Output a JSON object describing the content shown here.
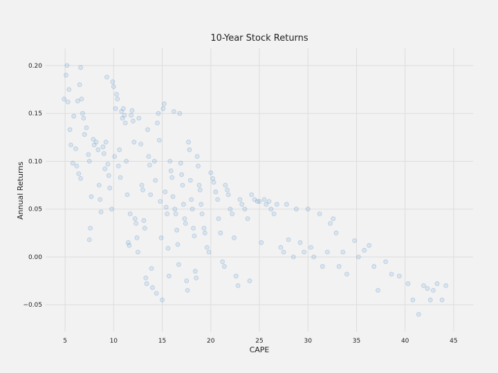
{
  "chart_data": {
    "type": "scatter",
    "title": "10-Year Stock Returns",
    "xlabel": "CAPE",
    "ylabel": "Annual Returns",
    "xlim": [
      3,
      47
    ],
    "ylim": [
      -0.078,
      0.218
    ],
    "xticks": [
      5,
      10,
      15,
      20,
      25,
      30,
      35,
      40,
      45
    ],
    "xtick_labels": [
      "5",
      "10",
      "15",
      "20",
      "25",
      "30",
      "35",
      "40",
      "45"
    ],
    "yticks": [
      -0.05,
      0.0,
      0.05,
      0.1,
      0.15,
      0.2
    ],
    "ytick_labels": [
      "−0.05",
      "0.00",
      "0.05",
      "0.10",
      "0.15",
      "0.20"
    ],
    "grid": true,
    "legend": "none",
    "marker_color": "#5b9bd5",
    "background": "#f2f2f2",
    "points": [
      [
        4.9,
        0.165
      ],
      [
        5.1,
        0.19
      ],
      [
        5.2,
        0.2
      ],
      [
        5.3,
        0.162
      ],
      [
        5.5,
        0.133
      ],
      [
        5.6,
        0.117
      ],
      [
        5.8,
        0.098
      ],
      [
        5.4,
        0.175
      ],
      [
        5.9,
        0.147
      ],
      [
        6.1,
        0.113
      ],
      [
        6.2,
        0.095
      ],
      [
        6.4,
        0.087
      ],
      [
        6.5,
        0.18
      ],
      [
        6.6,
        0.198
      ],
      [
        6.7,
        0.165
      ],
      [
        6.8,
        0.15
      ],
      [
        6.9,
        0.145
      ],
      [
        7.0,
        0.128
      ],
      [
        6.3,
        0.163
      ],
      [
        6.6,
        0.082
      ],
      [
        7.2,
        0.135
      ],
      [
        7.4,
        0.107
      ],
      [
        7.5,
        0.1
      ],
      [
        7.6,
        0.03
      ],
      [
        7.5,
        0.018
      ],
      [
        7.7,
        0.063
      ],
      [
        7.9,
        0.123
      ],
      [
        8.0,
        0.117
      ],
      [
        8.2,
        0.12
      ],
      [
        8.4,
        0.112
      ],
      [
        8.5,
        0.075
      ],
      [
        8.6,
        0.06
      ],
      [
        8.7,
        0.047
      ],
      [
        8.9,
        0.115
      ],
      [
        9.0,
        0.108
      ],
      [
        9.1,
        0.092
      ],
      [
        9.2,
        0.12
      ],
      [
        9.3,
        0.188
      ],
      [
        9.4,
        0.097
      ],
      [
        9.5,
        0.085
      ],
      [
        9.6,
        0.072
      ],
      [
        9.8,
        0.05
      ],
      [
        9.9,
        0.183
      ],
      [
        10.0,
        0.178
      ],
      [
        10.1,
        0.105
      ],
      [
        10.2,
        0.155
      ],
      [
        10.3,
        0.17
      ],
      [
        10.4,
        0.165
      ],
      [
        10.5,
        0.095
      ],
      [
        10.6,
        0.112
      ],
      [
        10.7,
        0.083
      ],
      [
        10.8,
        0.152
      ],
      [
        10.9,
        0.145
      ],
      [
        11.0,
        0.155
      ],
      [
        11.1,
        0.148
      ],
      [
        11.2,
        0.14
      ],
      [
        11.3,
        0.1
      ],
      [
        11.4,
        0.065
      ],
      [
        11.5,
        0.015
      ],
      [
        11.6,
        0.012
      ],
      [
        11.7,
        0.045
      ],
      [
        11.8,
        0.148
      ],
      [
        11.9,
        0.153
      ],
      [
        12.0,
        0.142
      ],
      [
        12.1,
        0.12
      ],
      [
        12.2,
        0.04
      ],
      [
        12.3,
        0.035
      ],
      [
        12.4,
        0.02
      ],
      [
        12.5,
        0.005
      ],
      [
        12.6,
        0.145
      ],
      [
        12.8,
        0.118
      ],
      [
        12.9,
        0.075
      ],
      [
        13.0,
        0.07
      ],
      [
        13.1,
        0.038
      ],
      [
        13.2,
        0.03
      ],
      [
        13.3,
        -0.022
      ],
      [
        13.4,
        -0.028
      ],
      [
        13.5,
        0.133
      ],
      [
        13.6,
        0.105
      ],
      [
        13.7,
        0.096
      ],
      [
        13.8,
        0.065
      ],
      [
        13.9,
        -0.012
      ],
      [
        14.0,
        -0.032
      ],
      [
        14.2,
        0.1
      ],
      [
        14.3,
        0.08
      ],
      [
        14.4,
        -0.038
      ],
      [
        14.5,
        0.14
      ],
      [
        14.6,
        0.15
      ],
      [
        14.7,
        0.122
      ],
      [
        14.8,
        0.058
      ],
      [
        14.9,
        0.02
      ],
      [
        15.0,
        -0.045
      ],
      [
        15.1,
        0.155
      ],
      [
        15.2,
        0.16
      ],
      [
        15.3,
        0.068
      ],
      [
        15.4,
        0.052
      ],
      [
        15.5,
        0.045
      ],
      [
        15.6,
        0.009
      ],
      [
        15.7,
        -0.02
      ],
      [
        15.8,
        0.1
      ],
      [
        15.9,
        0.09
      ],
      [
        16.0,
        0.083
      ],
      [
        16.1,
        0.063
      ],
      [
        16.2,
        0.152
      ],
      [
        16.3,
        0.05
      ],
      [
        16.4,
        0.045
      ],
      [
        16.5,
        0.028
      ],
      [
        16.6,
        0.013
      ],
      [
        16.7,
        -0.008
      ],
      [
        16.8,
        0.15
      ],
      [
        16.9,
        0.098
      ],
      [
        17.0,
        0.086
      ],
      [
        17.1,
        0.075
      ],
      [
        17.2,
        0.055
      ],
      [
        17.3,
        0.04
      ],
      [
        17.4,
        0.035
      ],
      [
        17.5,
        -0.025
      ],
      [
        17.6,
        -0.035
      ],
      [
        17.7,
        0.12
      ],
      [
        17.8,
        0.112
      ],
      [
        17.9,
        0.08
      ],
      [
        18.0,
        0.06
      ],
      [
        18.1,
        0.05
      ],
      [
        18.2,
        0.03
      ],
      [
        18.3,
        0.022
      ],
      [
        18.4,
        -0.015
      ],
      [
        18.5,
        -0.022
      ],
      [
        18.6,
        0.105
      ],
      [
        18.7,
        0.095
      ],
      [
        18.8,
        0.075
      ],
      [
        18.9,
        0.07
      ],
      [
        19.0,
        0.055
      ],
      [
        19.1,
        0.045
      ],
      [
        19.3,
        0.03
      ],
      [
        19.4,
        0.025
      ],
      [
        19.6,
        0.01
      ],
      [
        19.8,
        0.005
      ],
      [
        20.0,
        0.088
      ],
      [
        20.2,
        0.082
      ],
      [
        20.3,
        0.078
      ],
      [
        20.5,
        0.068
      ],
      [
        20.7,
        0.06
      ],
      [
        20.8,
        0.04
      ],
      [
        21.0,
        0.025
      ],
      [
        21.2,
        -0.005
      ],
      [
        21.4,
        -0.01
      ],
      [
        21.5,
        0.075
      ],
      [
        21.7,
        0.07
      ],
      [
        21.8,
        0.065
      ],
      [
        22.0,
        0.05
      ],
      [
        22.2,
        0.045
      ],
      [
        22.4,
        0.02
      ],
      [
        22.6,
        -0.02
      ],
      [
        22.8,
        -0.03
      ],
      [
        23.0,
        0.06
      ],
      [
        23.2,
        0.055
      ],
      [
        23.5,
        0.05
      ],
      [
        23.8,
        0.04
      ],
      [
        24.0,
        -0.025
      ],
      [
        24.2,
        0.065
      ],
      [
        24.5,
        0.06
      ],
      [
        24.8,
        0.058
      ],
      [
        25.0,
        0.058
      ],
      [
        25.2,
        0.015
      ],
      [
        25.5,
        0.06
      ],
      [
        25.7,
        0.055
      ],
      [
        26.0,
        0.058
      ],
      [
        26.2,
        0.05
      ],
      [
        26.5,
        0.045
      ],
      [
        26.8,
        0.055
      ],
      [
        27.2,
        0.01
      ],
      [
        27.5,
        0.005
      ],
      [
        27.8,
        0.055
      ],
      [
        28.0,
        0.018
      ],
      [
        28.5,
        0.0
      ],
      [
        28.8,
        0.05
      ],
      [
        29.2,
        0.015
      ],
      [
        29.6,
        0.005
      ],
      [
        30.0,
        0.05
      ],
      [
        30.3,
        0.01
      ],
      [
        30.6,
        0.0
      ],
      [
        31.2,
        0.045
      ],
      [
        31.5,
        -0.01
      ],
      [
        32.0,
        0.005
      ],
      [
        32.3,
        0.035
      ],
      [
        32.6,
        0.04
      ],
      [
        32.9,
        0.025
      ],
      [
        33.2,
        -0.01
      ],
      [
        33.6,
        0.005
      ],
      [
        34.0,
        -0.018
      ],
      [
        34.8,
        0.017
      ],
      [
        35.2,
        0.0
      ],
      [
        35.8,
        0.007
      ],
      [
        36.3,
        0.012
      ],
      [
        36.8,
        -0.01
      ],
      [
        37.2,
        -0.035
      ],
      [
        38.0,
        -0.005
      ],
      [
        38.6,
        -0.018
      ],
      [
        39.4,
        -0.02
      ],
      [
        40.3,
        -0.028
      ],
      [
        40.8,
        -0.045
      ],
      [
        41.4,
        -0.06
      ],
      [
        41.9,
        -0.03
      ],
      [
        42.3,
        -0.033
      ],
      [
        42.6,
        -0.045
      ],
      [
        42.9,
        -0.035
      ],
      [
        43.3,
        -0.028
      ],
      [
        43.8,
        -0.045
      ],
      [
        44.2,
        -0.03
      ]
    ]
  }
}
